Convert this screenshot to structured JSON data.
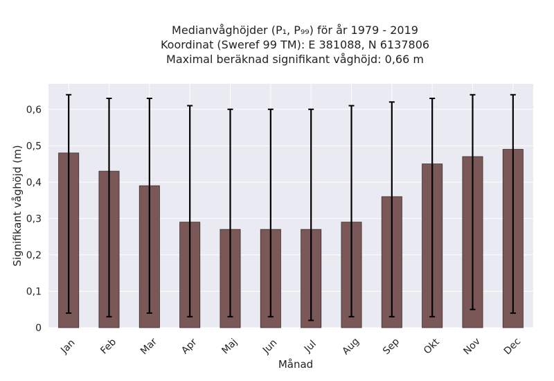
{
  "chart_data": {
    "type": "bar",
    "title_lines": [
      "Medianvåghöjder (P₁, P₉₉) för år 1979 - 2019",
      "Koordinat (Sweref 99 TM): E 381088, N 6137806",
      "Maximal beräknad signifikant våghöjd: 0,66 m"
    ],
    "xlabel": "Månad",
    "ylabel": "Signifikant våghöjd (m)",
    "categories": [
      "Jan",
      "Feb",
      "Mar",
      "Apr",
      "Maj",
      "Jun",
      "Jul",
      "Aug",
      "Sep",
      "Okt",
      "Nov",
      "Dec"
    ],
    "values": [
      0.48,
      0.43,
      0.39,
      0.29,
      0.27,
      0.27,
      0.27,
      0.29,
      0.36,
      0.45,
      0.47,
      0.49
    ],
    "error_low": [
      0.04,
      0.03,
      0.04,
      0.03,
      0.03,
      0.03,
      0.02,
      0.03,
      0.03,
      0.03,
      0.05,
      0.04
    ],
    "error_high": [
      0.64,
      0.63,
      0.63,
      0.61,
      0.6,
      0.6,
      0.6,
      0.61,
      0.62,
      0.63,
      0.64,
      0.64
    ],
    "ylim": [
      0,
      0.67
    ],
    "yticks": [
      0,
      0.1,
      0.2,
      0.3,
      0.4,
      0.5,
      0.6
    ],
    "ytick_labels": [
      "0",
      "0,1",
      "0,2",
      "0,3",
      "0,4",
      "0,5",
      "0,6"
    ],
    "grid": true,
    "colors": {
      "bar": "#7a5858",
      "bar_edge": "#3a2a2a",
      "error": "#000000",
      "plot_bg": "#eaeaf2",
      "grid": "#ffffff"
    }
  }
}
